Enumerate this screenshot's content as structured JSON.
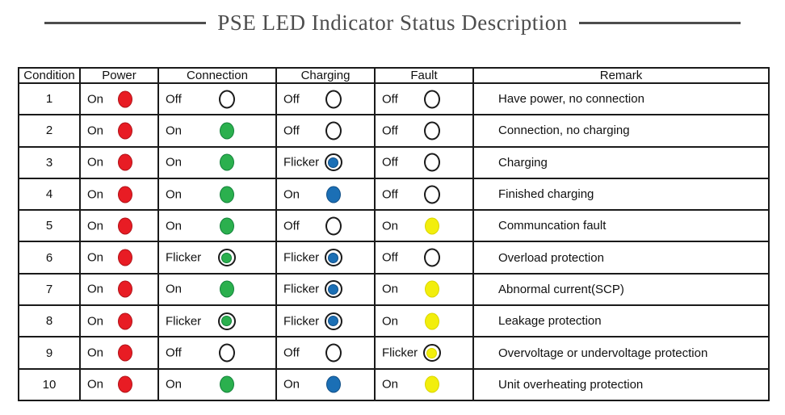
{
  "title": "PSE LED Indicator Status Description",
  "colors": {
    "border": "#1a1a1a",
    "title": "#4d4d4d",
    "power": {
      "fill": "#e81c24",
      "edge": "#b01218"
    },
    "connection": {
      "fill": "#2bb04e",
      "edge": "#13813a"
    },
    "charging": {
      "fill": "#1b6fb5",
      "edge": "#114f86"
    },
    "fault": {
      "fill": "#f2ee0c",
      "edge": "#d9d500"
    }
  },
  "table": {
    "columns": [
      {
        "key": "condition",
        "label": "Condition"
      },
      {
        "key": "power",
        "label": "Power"
      },
      {
        "key": "connection",
        "label": "Connection"
      },
      {
        "key": "charging",
        "label": "Charging"
      },
      {
        "key": "fault",
        "label": "Fault"
      },
      {
        "key": "remark",
        "label": "Remark"
      }
    ],
    "rows": [
      {
        "condition": "1",
        "power": {
          "label": "On",
          "state": "on"
        },
        "connection": {
          "label": "Off",
          "state": "off"
        },
        "charging": {
          "label": "Off",
          "state": "off"
        },
        "fault": {
          "label": "Off",
          "state": "off"
        },
        "remark": "Have power, no connection"
      },
      {
        "condition": "2",
        "power": {
          "label": "On",
          "state": "on"
        },
        "connection": {
          "label": "On",
          "state": "on"
        },
        "charging": {
          "label": "Off",
          "state": "off"
        },
        "fault": {
          "label": "Off",
          "state": "off"
        },
        "remark": "Connection, no charging"
      },
      {
        "condition": "3",
        "power": {
          "label": "On",
          "state": "on"
        },
        "connection": {
          "label": "On",
          "state": "on"
        },
        "charging": {
          "label": "Flicker",
          "state": "flicker"
        },
        "fault": {
          "label": "Off",
          "state": "off"
        },
        "remark": "Charging"
      },
      {
        "condition": "4",
        "power": {
          "label": "On",
          "state": "on"
        },
        "connection": {
          "label": "On",
          "state": "on"
        },
        "charging": {
          "label": "On",
          "state": "on"
        },
        "fault": {
          "label": "Off",
          "state": "off"
        },
        "remark": "Finished charging"
      },
      {
        "condition": "5",
        "power": {
          "label": "On",
          "state": "on"
        },
        "connection": {
          "label": "On",
          "state": "on"
        },
        "charging": {
          "label": "Off",
          "state": "off"
        },
        "fault": {
          "label": "On",
          "state": "on"
        },
        "remark": "Communcation fault"
      },
      {
        "condition": "6",
        "power": {
          "label": "On",
          "state": "on"
        },
        "connection": {
          "label": "Flicker",
          "state": "flicker"
        },
        "charging": {
          "label": "Flicker",
          "state": "flicker"
        },
        "fault": {
          "label": "Off",
          "state": "off"
        },
        "remark": "Overload protection"
      },
      {
        "condition": "7",
        "power": {
          "label": "On",
          "state": "on"
        },
        "connection": {
          "label": "On",
          "state": "on"
        },
        "charging": {
          "label": "Flicker",
          "state": "flicker"
        },
        "fault": {
          "label": "On",
          "state": "on"
        },
        "remark": "Abnormal current(SCP)"
      },
      {
        "condition": "8",
        "power": {
          "label": "On",
          "state": "on"
        },
        "connection": {
          "label": "Flicker",
          "state": "flicker"
        },
        "charging": {
          "label": "Flicker",
          "state": "flicker"
        },
        "fault": {
          "label": "On",
          "state": "on"
        },
        "remark": "Leakage protection"
      },
      {
        "condition": "9",
        "power": {
          "label": "On",
          "state": "on"
        },
        "connection": {
          "label": "Off",
          "state": "off"
        },
        "charging": {
          "label": "Off",
          "state": "off"
        },
        "fault": {
          "label": "Flicker",
          "state": "flicker"
        },
        "remark": "Overvoltage or undervoltage protection"
      },
      {
        "condition": "10",
        "power": {
          "label": "On",
          "state": "on"
        },
        "connection": {
          "label": "On",
          "state": "on"
        },
        "charging": {
          "label": "On",
          "state": "on"
        },
        "fault": {
          "label": "On",
          "state": "on"
        },
        "remark": "Unit overheating protection"
      }
    ]
  }
}
